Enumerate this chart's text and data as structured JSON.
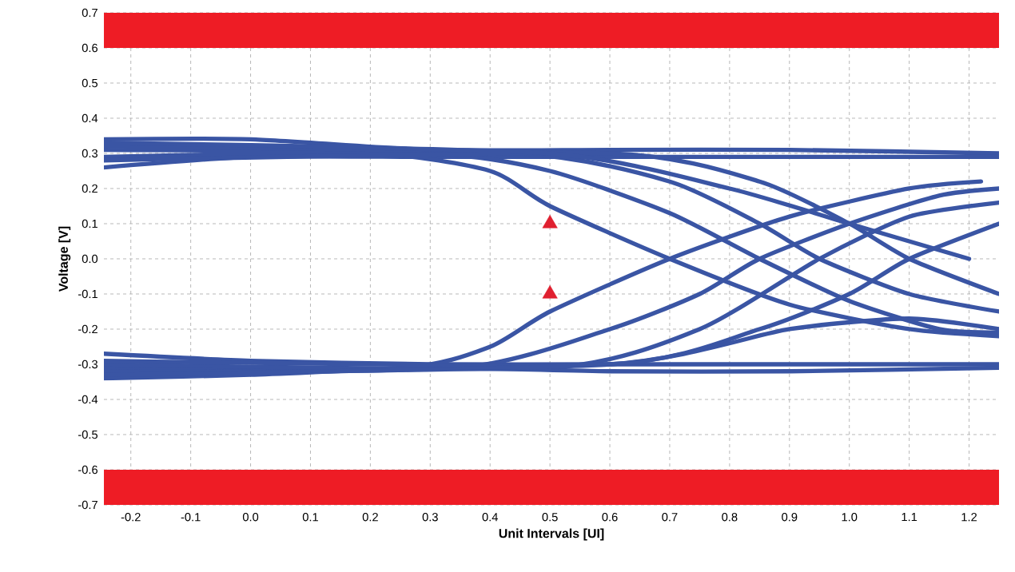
{
  "chart_data": {
    "type": "line",
    "xlabel": "Unit Intervals [UI]",
    "ylabel": "Voltage [V]",
    "xlim": [
      -0.245,
      1.25
    ],
    "ylim": [
      -0.7,
      0.7
    ],
    "xticks": [
      -0.2,
      -0.1,
      {
        "value": 0,
        "label": "0.0"
      },
      0.1,
      0.2,
      0.3,
      0.4,
      0.5,
      0.6,
      0.7,
      0.8,
      0.9,
      {
        "value": 1,
        "label": "1.0"
      },
      1.1,
      1.2
    ],
    "yticks": [
      -0.7,
      -0.6,
      -0.5,
      -0.4,
      -0.3,
      -0.2,
      -0.1,
      {
        "value": 0,
        "label": "0.0"
      },
      0.1,
      0.2,
      0.3,
      0.4,
      0.5,
      0.6,
      0.7
    ],
    "grid": true,
    "legend": false,
    "marker": "none",
    "line_style": "solid",
    "bands": [
      {
        "axis": "y",
        "from": 0.6,
        "to": 0.7,
        "color": "#ee1c25"
      },
      {
        "axis": "y",
        "from": -0.7,
        "to": -0.6,
        "color": "#ee1c25"
      }
    ],
    "series": [
      {
        "color": "#3a55a4",
        "x": [
          -0.245,
          0,
          0.3,
          0.6,
          0.9,
          1.25
        ],
        "values": [
          0.34,
          0.34,
          0.31,
          0.31,
          0.31,
          0.3
        ]
      },
      {
        "color": "#3a55a4",
        "x": [
          -0.245,
          0,
          0.3,
          0.6,
          0.9,
          1.25
        ],
        "values": [
          0.26,
          0.29,
          0.29,
          0.29,
          0.29,
          0.29
        ]
      },
      {
        "color": "#3a55a4",
        "x": [
          -0.245,
          0,
          0.3,
          0.6,
          0.9,
          1.25
        ],
        "values": [
          -0.34,
          -0.33,
          -0.31,
          -0.32,
          -0.32,
          -0.31
        ]
      },
      {
        "color": "#3a55a4",
        "x": [
          -0.245,
          0,
          0.3,
          0.6,
          0.9,
          1.25
        ],
        "values": [
          -0.27,
          -0.29,
          -0.3,
          -0.3,
          -0.3,
          -0.3
        ]
      },
      {
        "color": "#3a55a4",
        "x": [
          -0.245,
          0.2,
          0.4,
          0.5,
          0.7,
          0.9,
          1.1,
          1.25
        ],
        "values": [
          0.29,
          0.3,
          0.25,
          0.15,
          0.0,
          -0.13,
          -0.2,
          -0.22
        ]
      },
      {
        "color": "#3a55a4",
        "x": [
          -0.245,
          0.3,
          0.5,
          0.7,
          0.85,
          1.0,
          1.15,
          1.25
        ],
        "values": [
          0.31,
          0.3,
          0.25,
          0.13,
          0.0,
          -0.12,
          -0.2,
          -0.21
        ]
      },
      {
        "color": "#3a55a4",
        "x": [
          -0.245,
          0.45,
          0.7,
          0.85,
          0.95,
          1.1,
          1.25
        ],
        "values": [
          0.32,
          0.3,
          0.22,
          0.1,
          0.0,
          -0.1,
          -0.15
        ]
      },
      {
        "color": "#3a55a4",
        "x": [
          -0.245,
          0.6,
          0.85,
          1.0,
          1.1,
          1.25
        ],
        "values": [
          0.28,
          0.3,
          0.22,
          0.1,
          0.0,
          -0.1
        ]
      },
      {
        "color": "#3a55a4",
        "x": [
          -0.245,
          0.5,
          0.8,
          1.0,
          1.2
        ],
        "values": [
          0.33,
          0.3,
          0.2,
          0.1,
          0.0
        ]
      },
      {
        "color": "#3a55a4",
        "x": [
          -0.245,
          0.25,
          0.4,
          0.5,
          0.7,
          0.9,
          1.1,
          1.22
        ],
        "values": [
          -0.31,
          -0.31,
          -0.25,
          -0.15,
          0.0,
          0.12,
          0.2,
          0.22
        ]
      },
      {
        "color": "#3a55a4",
        "x": [
          -0.245,
          0.35,
          0.6,
          0.75,
          0.85,
          1.0,
          1.15,
          1.25
        ],
        "values": [
          -0.32,
          -0.31,
          -0.2,
          -0.1,
          0.0,
          0.1,
          0.18,
          0.2
        ]
      },
      {
        "color": "#3a55a4",
        "x": [
          -0.245,
          0.5,
          0.75,
          0.95,
          1.1,
          1.25
        ],
        "values": [
          -0.3,
          -0.31,
          -0.2,
          0.0,
          0.12,
          0.16
        ]
      },
      {
        "color": "#3a55a4",
        "x": [
          -0.245,
          0.6,
          0.85,
          1.0,
          1.1,
          1.25
        ],
        "values": [
          -0.29,
          -0.3,
          -0.2,
          -0.1,
          0.0,
          0.1
        ]
      },
      {
        "color": "#3a55a4",
        "x": [
          -0.245,
          0.6,
          0.9,
          1.1,
          1.25
        ],
        "values": [
          -0.33,
          -0.3,
          -0.2,
          -0.17,
          -0.2
        ]
      },
      {
        "type": "scatter",
        "marker": "triangle",
        "color": "#e02030",
        "x": [
          0.5,
          0.5
        ],
        "values": [
          0.1,
          -0.1
        ]
      }
    ]
  }
}
